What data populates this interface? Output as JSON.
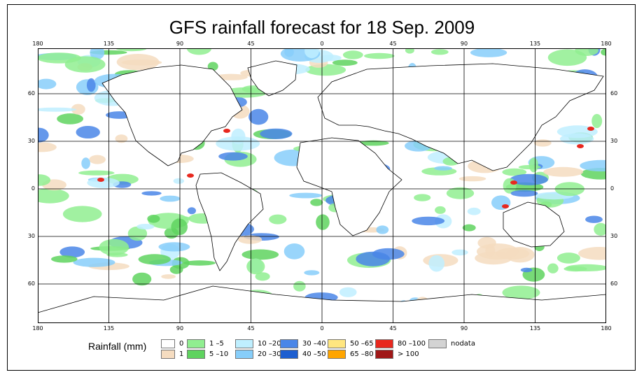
{
  "title": "GFS rainfall forecast for 18 Sep. 2009",
  "longitude_labels": [
    "180",
    "135",
    "90",
    "45",
    "0",
    "45",
    "90",
    "135",
    "180"
  ],
  "latitude_labels": [
    "60",
    "30",
    "0",
    "30",
    "60"
  ],
  "legend": {
    "title": "Rainfall (mm)",
    "items": [
      {
        "label": "0",
        "color": "#ffffff"
      },
      {
        "label": "1",
        "color": "#f5dcc0"
      },
      {
        "label": "1 –5",
        "color": "#90ee90"
      },
      {
        "label": "5 –10",
        "color": "#5fd35f"
      },
      {
        "label": "10 –20",
        "color": "#bfefff"
      },
      {
        "label": "20 –30",
        "color": "#87cefa"
      },
      {
        "label": "30 –40",
        "color": "#4a86e8"
      },
      {
        "label": "40 –50",
        "color": "#1e5fd0"
      },
      {
        "label": "50 –65",
        "color": "#ffe680"
      },
      {
        "label": "65 –80",
        "color": "#ffa500"
      },
      {
        "label": "80 –100",
        "color": "#e8281e"
      },
      {
        "label": "> 100",
        "color": "#a01818"
      },
      {
        "label": "nodata",
        "color": "#d3d3d3"
      }
    ]
  }
}
